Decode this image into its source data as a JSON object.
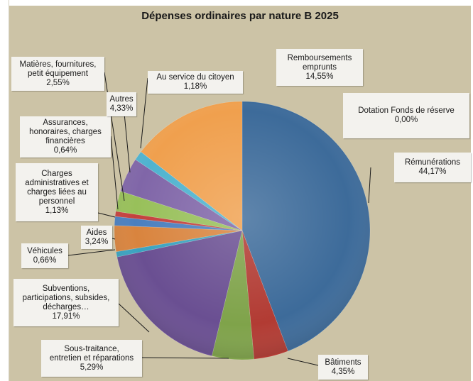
{
  "chart_data": {
    "type": "pie",
    "title": "Dépenses ordinaires par nature B 2025",
    "slices": [
      {
        "label": "Rémunérations",
        "value_text": "44,17%",
        "value": 44.17,
        "color": "#3d6b9a"
      },
      {
        "label": "Bâtiments",
        "value_text": "4,35%",
        "value": 4.35,
        "color": "#b23b33"
      },
      {
        "label": "Sous-traitance,\nentretien et réparations",
        "value_text": "5,29%",
        "value": 5.29,
        "color": "#7fa34a"
      },
      {
        "label": "Subventions,\nparticipations, subsides,\ndécharges…",
        "value_text": "17,91%",
        "value": 17.91,
        "color": "#6a4f92"
      },
      {
        "label": "Véhicules",
        "value_text": "0,66%",
        "value": 0.66,
        "color": "#3aa3c0"
      },
      {
        "label": "Aides",
        "value_text": "3,24%",
        "value": 3.24,
        "color": "#d9843e"
      },
      {
        "label": "Charges\nadministratives et\ncharges liées au\npersonnel",
        "value_text": "1,13%",
        "value": 1.13,
        "color": "#4a7fbf"
      },
      {
        "label": "Assurances,\nhonoraires, charges\nfinancières",
        "value_text": "0,64%",
        "value": 0.64,
        "color": "#c4413d"
      },
      {
        "label": "Matières, fournitures,\npetit équipement",
        "value_text": "2,55%",
        "value": 2.55,
        "color": "#98c05a"
      },
      {
        "label": "Autres",
        "value_text": "4,33%",
        "value": 4.33,
        "color": "#8066a8"
      },
      {
        "label": "Au service du citoyen",
        "value_text": "1,18%",
        "value": 1.18,
        "color": "#4fb3cf"
      },
      {
        "label": "Remboursements\nemprunts",
        "value_text": "14,55%",
        "value": 14.55,
        "color": "#f0a04e"
      },
      {
        "label": "Dotation Fonds de réserve",
        "value_text": "0,00%",
        "value": 0.0,
        "color": "#9aa7c9"
      }
    ]
  }
}
